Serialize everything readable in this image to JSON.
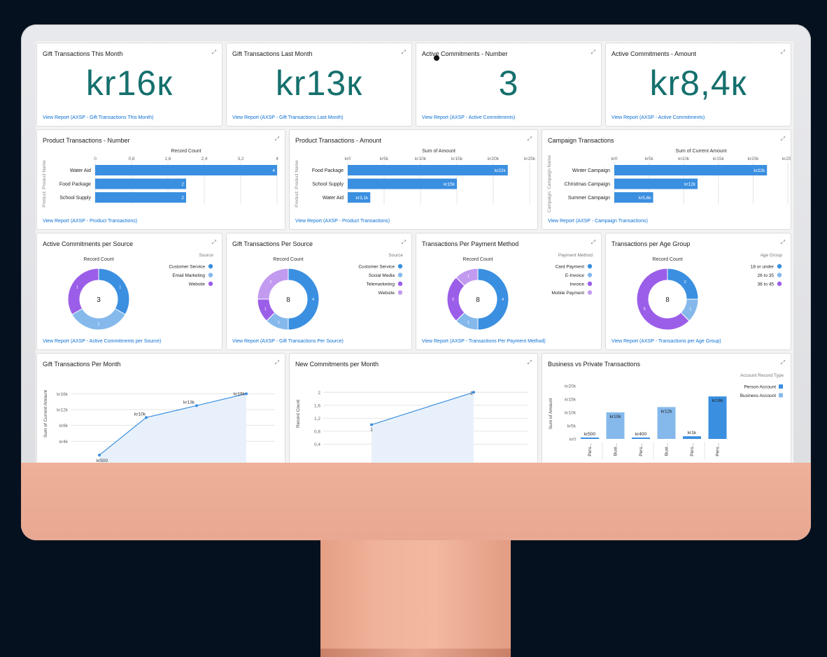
{
  "kpis": [
    {
      "title": "Gift Transactions This Month",
      "value": "kr16к",
      "link": "View Report (AXSP - Gift Transactions This Month)"
    },
    {
      "title": "Gift Transactions Last Month",
      "value": "kr13к",
      "link": "View Report (AXSP - Gift Transactions Last Month)"
    },
    {
      "title": "Active Commitments - Number",
      "value": "3",
      "link": "View Report (AXSP - Active Commitments)"
    },
    {
      "title": "Active Commitments - Amount",
      "value": "kr8,4к",
      "link": "View Report (AXSP - Active Commitments)"
    }
  ],
  "expand_icon": "⤢",
  "bars": [
    {
      "title": "Product Transactions - Number",
      "link": "View Report (AXSP - Product Transactions)"
    },
    {
      "title": "Product Transactions - Amount",
      "link": "View Report (AXSP - Product Transactions)"
    },
    {
      "title": "Campaign Transactions",
      "link": "View Report (AXSP - Campaign Transactions)"
    }
  ],
  "donuts": [
    {
      "title": "Active Commitments per Source",
      "link": "View Report (AXSP - Active Commitments per Source)"
    },
    {
      "title": "Gift Transactions Per Source",
      "link": "View Report (AXSP - Gift Transactions Per Source)"
    },
    {
      "title": "Transactions Per Payment Method",
      "link": "View Report (AXSP - Transactions Per Payment Method)"
    },
    {
      "title": "Transactions per Age Group",
      "link": "View Report (AXSP - Transactions per Age Group)"
    }
  ],
  "lines": [
    {
      "title": "Gift Transactions Per Month"
    },
    {
      "title": "New Commitments per Month"
    },
    {
      "title": "Business vs Private Transactions"
    }
  ],
  "colors": {
    "blue": "#3a8fe0",
    "light": "#85b9ec",
    "purple": "#9b5ee8",
    "lilac": "#c29bf0",
    "teal": "#15706d",
    "grid": "#e4e4e4"
  },
  "chart_data": [
    {
      "type": "bar",
      "orientation": "horizontal",
      "xlabel": "Record Count",
      "ylabel": "Product: Product Name",
      "categories": [
        "Water Aid",
        "Food Package",
        "School Supply"
      ],
      "values": [
        4,
        2,
        2
      ],
      "labels": [
        "4",
        "2",
        "2"
      ],
      "xlim": [
        0,
        4
      ],
      "ticks": [
        "0",
        "0,8",
        "1,6",
        "2,4",
        "3,2",
        "4"
      ]
    },
    {
      "type": "bar",
      "orientation": "horizontal",
      "xlabel": "Sum of Amount",
      "ylabel": "Product: Product Name",
      "categories": [
        "Food Package",
        "School Supply",
        "Water Aid"
      ],
      "values": [
        22000,
        15000,
        3100
      ],
      "labels": [
        "kr22k",
        "kr15k",
        "kr3,1k"
      ],
      "xlim": [
        0,
        25000
      ],
      "ticks": [
        "kr0",
        "kr5k",
        "kr10k",
        "kr15k",
        "kr20k",
        "kr25k"
      ]
    },
    {
      "type": "bar",
      "orientation": "horizontal",
      "xlabel": "Sum of Current Amount",
      "ylabel": "Campaign: Campaign Name",
      "categories": [
        "Winter Campaign",
        "Christmas Campaign",
        "Summer Campaign"
      ],
      "values": [
        22000,
        12000,
        5600
      ],
      "labels": [
        "kr22k",
        "kr12k",
        "kr5,6k"
      ],
      "xlim": [
        0,
        25000
      ],
      "ticks": [
        "kr0",
        "kr5k",
        "kr10k",
        "kr15k",
        "kr20k",
        "kr25k"
      ]
    },
    {
      "type": "pie",
      "subtitle": "Record Count",
      "legend_title": "Source",
      "total": "3",
      "categories": [
        "Customer Service",
        "Email Marketing",
        "Website"
      ],
      "values": [
        1,
        1,
        1
      ],
      "colors": [
        "#3a8fe0",
        "#85b9ec",
        "#9b5ee8"
      ]
    },
    {
      "type": "pie",
      "subtitle": "Record Count",
      "legend_title": "Source",
      "total": "8",
      "categories": [
        "Customer Service",
        "Social Media",
        "Telemarketing",
        "Website"
      ],
      "values": [
        4,
        1,
        1,
        2
      ],
      "colors": [
        "#3a8fe0",
        "#85b9ec",
        "#9b5ee8",
        "#c29bf0"
      ]
    },
    {
      "type": "pie",
      "subtitle": "Record Count",
      "legend_title": "Payment Method",
      "total": "8",
      "categories": [
        "Card Payment",
        "E-Invoice",
        "Invoice",
        "Mobile Payment"
      ],
      "values": [
        4,
        1,
        2,
        1
      ],
      "colors": [
        "#3a8fe0",
        "#85b9ec",
        "#9b5ee8",
        "#c29bf0"
      ]
    },
    {
      "type": "pie",
      "subtitle": "Record Count",
      "legend_title": "Age Group",
      "total": "8",
      "categories": [
        "18 or under",
        "26 to 35",
        "36 to 45"
      ],
      "values": [
        2,
        1,
        5
      ],
      "colors": [
        "#3a8fe0",
        "#85b9ec",
        "#9b5ee8"
      ]
    },
    {
      "type": "area",
      "ylabel": "Sum of Current Amount",
      "ticks": [
        "kr16k",
        "kr12k",
        "kr8k",
        "kr4k"
      ],
      "ylim": [
        0,
        18000
      ],
      "values": [
        500,
        10000,
        13000,
        16000
      ],
      "labels": [
        "kr500",
        "kr10k",
        "kr13k",
        "kr16k"
      ]
    },
    {
      "type": "area",
      "ylabel": "Record Count",
      "ticks": [
        "2",
        "1,6",
        "1,2",
        "0,8",
        "0,4"
      ],
      "ylim": [
        0,
        2.2
      ],
      "values": [
        1,
        2
      ],
      "labels": [
        "1",
        "2"
      ]
    },
    {
      "type": "bar",
      "ylabel": "Sum of Amount",
      "legend_title": "Account Record Type",
      "series_names": [
        "Person Account",
        "Business Account"
      ],
      "ticks": [
        "kr20k",
        "kr15k",
        "kr10k",
        "kr5k",
        "kr0"
      ],
      "ylim": [
        0,
        20000
      ],
      "categories": [
        "Pers...",
        "Busi...",
        "Pers...",
        "Busi...",
        "Pers...",
        "Pers..."
      ],
      "values": [
        500,
        10000,
        400,
        12000,
        1000,
        16000
      ],
      "labels": [
        "kr500",
        "kr10k",
        "kr400",
        "kr12k",
        "kr1k",
        "kr16k"
      ],
      "series_index": [
        0,
        1,
        0,
        1,
        0,
        0
      ]
    }
  ]
}
